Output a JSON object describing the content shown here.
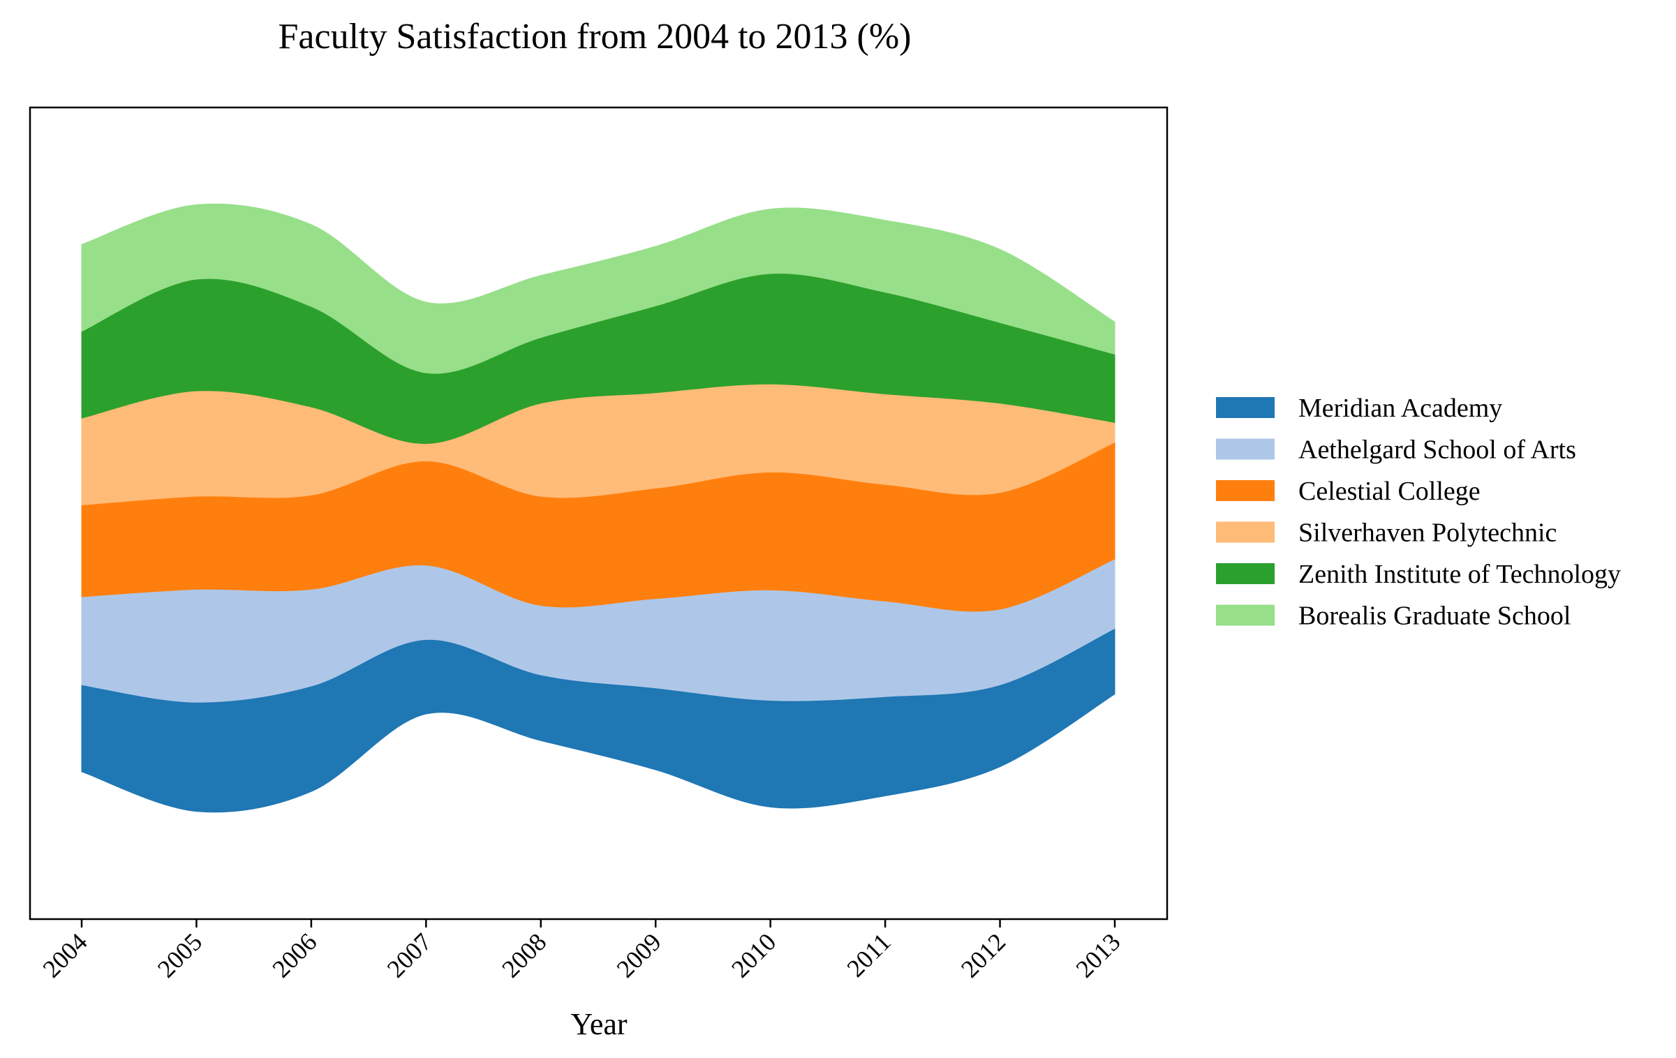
{
  "chart_data": {
    "type": "area",
    "subtype": "streamgraph",
    "title": "Faculty Satisfaction from 2004 to 2013 (%)",
    "xlabel": "Year",
    "ylabel": "",
    "x": [
      "2004",
      "2005",
      "2006",
      "2007",
      "2008",
      "2009",
      "2010",
      "2011",
      "2012",
      "2013"
    ],
    "series": [
      {
        "name": "Meridian Academy",
        "color": "#1f77b4",
        "values": [
          70,
          88,
          85,
          60,
          53,
          66,
          86,
          80,
          66,
          53
        ]
      },
      {
        "name": "Aethelgard School of Arts",
        "color": "#aec7e8",
        "values": [
          71,
          91,
          78,
          60,
          56,
          72,
          89,
          77,
          61,
          56
        ]
      },
      {
        "name": "Celestial College",
        "color": "#ff7f0e",
        "values": [
          74,
          75,
          76,
          84,
          88,
          89,
          95,
          94,
          94,
          94
        ]
      },
      {
        "name": "Silverhaven Polytechnic",
        "color": "#ffbb78",
        "values": [
          70,
          85,
          71,
          14,
          75,
          77,
          71,
          73,
          72,
          16
        ]
      },
      {
        "name": "Zenith Institute of Technology",
        "color": "#2ca02c",
        "values": [
          70,
          90,
          81,
          57,
          53,
          70,
          89,
          82,
          65,
          55
        ]
      },
      {
        "name": "Borealis Graduate School",
        "color": "#98df8a",
        "values": [
          70,
          60,
          66,
          57,
          50,
          48,
          52,
          58,
          59,
          26
        ]
      }
    ],
    "baseline": "symmetric (centered stream)",
    "grid": false,
    "legend_position": "right"
  }
}
